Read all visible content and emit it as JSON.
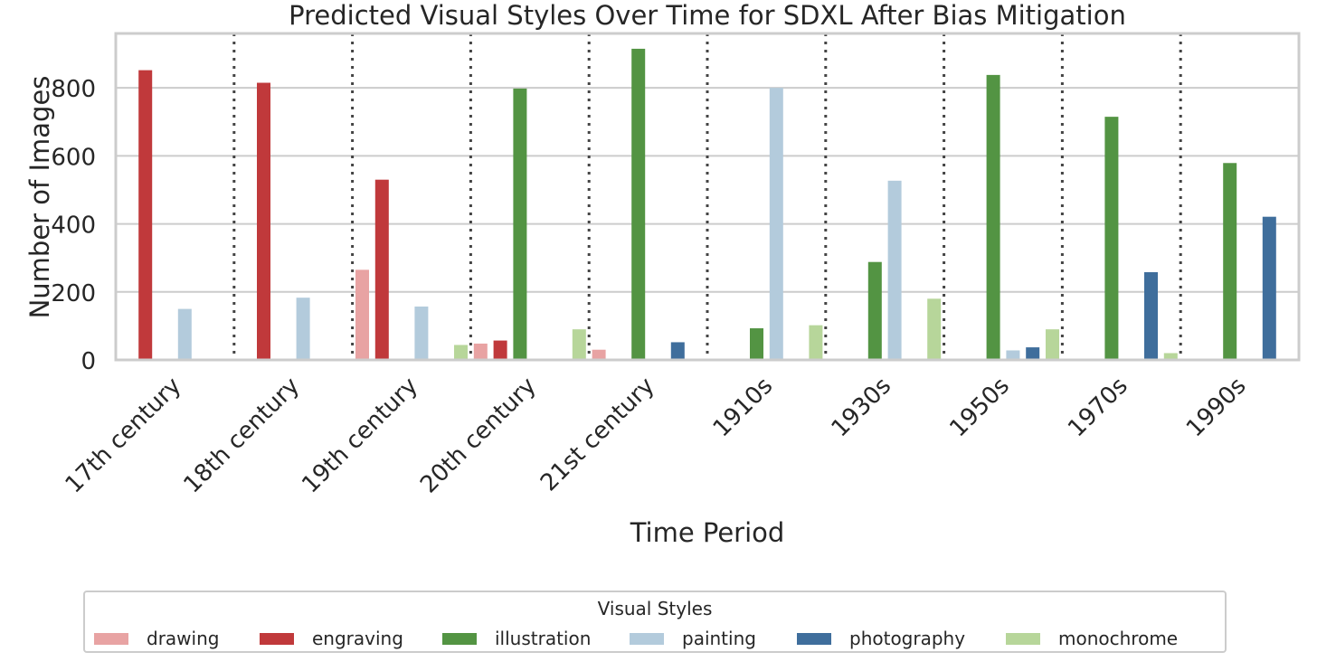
{
  "chart_data": {
    "type": "bar",
    "title": "Predicted Visual Styles Over Time for SDXL After Bias Mitigation",
    "xlabel": "Time Period",
    "ylabel": "Number of Images",
    "ylim": [
      0,
      960
    ],
    "yticks": [
      0,
      200,
      400,
      600,
      800
    ],
    "grid": true,
    "legend_title": "Visual Styles",
    "legend_position": "bottom-center",
    "categories": [
      "17th century",
      "18th century",
      "19th century",
      "20th century",
      "21st century",
      "1910s",
      "1930s",
      "1950s",
      "1970s",
      "1990s"
    ],
    "series": [
      {
        "name": "drawing",
        "color": "#e8a3a3",
        "values": [
          0,
          0,
          265,
          48,
          30,
          0,
          0,
          0,
          0,
          0
        ]
      },
      {
        "name": "engraving",
        "color": "#c0393b",
        "values": [
          852,
          815,
          530,
          57,
          0,
          0,
          0,
          0,
          0,
          0
        ]
      },
      {
        "name": "illustration",
        "color": "#539443",
        "values": [
          0,
          0,
          0,
          798,
          915,
          93,
          288,
          838,
          715,
          579
        ]
      },
      {
        "name": "painting",
        "color": "#b3cbdc",
        "values": [
          150,
          183,
          157,
          0,
          0,
          800,
          527,
          28,
          0,
          0
        ]
      },
      {
        "name": "photography",
        "color": "#3f6e9c",
        "values": [
          0,
          0,
          0,
          0,
          52,
          0,
          0,
          37,
          258,
          421
        ]
      },
      {
        "name": "monochrome",
        "color": "#b7d69a",
        "values": [
          0,
          0,
          44,
          90,
          0,
          102,
          180,
          90,
          20,
          0
        ]
      }
    ]
  }
}
